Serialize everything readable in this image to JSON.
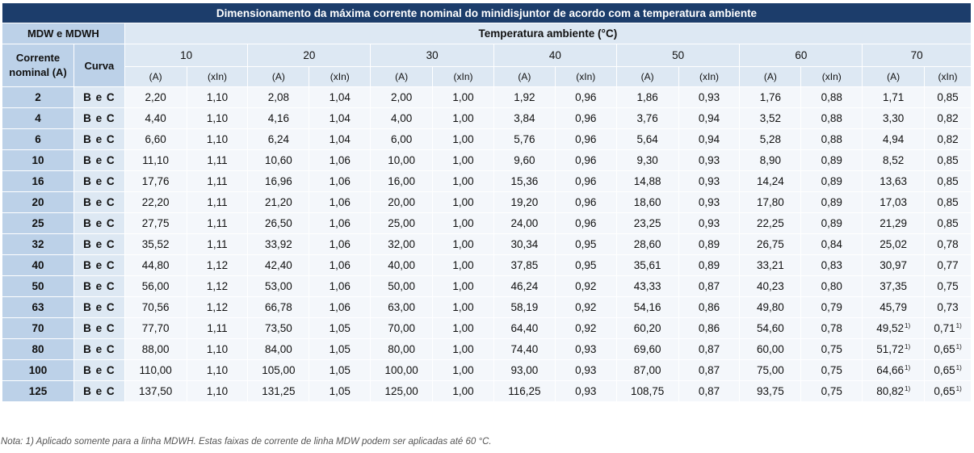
{
  "title": "Dimensionamento da máxima corrente nominal do minidisjuntor de acordo com a temperatura ambiente",
  "header": {
    "series_label": "MDW e MDWH",
    "temp_label": "Temperatura ambiente (°C)",
    "current_label_line1": "Corrente",
    "current_label_line2": "nominal (A)",
    "curve_label": "Curva",
    "temperatures": [
      "10",
      "20",
      "30",
      "40",
      "50",
      "60",
      "70"
    ],
    "unit_a": "(A)",
    "unit_xin": "(xIn)"
  },
  "rows": [
    {
      "current": "2",
      "curve": "B e C",
      "values": [
        "2,20",
        "1,10",
        "2,08",
        "1,04",
        "2,00",
        "1,00",
        "1,92",
        "0,96",
        "1,86",
        "0,93",
        "1,76",
        "0,88",
        "1,71",
        "0,85"
      ]
    },
    {
      "current": "4",
      "curve": "B e C",
      "values": [
        "4,40",
        "1,10",
        "4,16",
        "1,04",
        "4,00",
        "1,00",
        "3,84",
        "0,96",
        "3,76",
        "0,94",
        "3,52",
        "0,88",
        "3,30",
        "0,82"
      ]
    },
    {
      "current": "6",
      "curve": "B e C",
      "values": [
        "6,60",
        "1,10",
        "6,24",
        "1,04",
        "6,00",
        "1,00",
        "5,76",
        "0,96",
        "5,64",
        "0,94",
        "5,28",
        "0,88",
        "4,94",
        "0,82"
      ]
    },
    {
      "current": "10",
      "curve": "B e C",
      "values": [
        "11,10",
        "1,11",
        "10,60",
        "1,06",
        "10,00",
        "1,00",
        "9,60",
        "0,96",
        "9,30",
        "0,93",
        "8,90",
        "0,89",
        "8,52",
        "0,85"
      ]
    },
    {
      "current": "16",
      "curve": "B e C",
      "values": [
        "17,76",
        "1,11",
        "16,96",
        "1,06",
        "16,00",
        "1,00",
        "15,36",
        "0,96",
        "14,88",
        "0,93",
        "14,24",
        "0,89",
        "13,63",
        "0,85"
      ]
    },
    {
      "current": "20",
      "curve": "B e C",
      "values": [
        "22,20",
        "1,11",
        "21,20",
        "1,06",
        "20,00",
        "1,00",
        "19,20",
        "0,96",
        "18,60",
        "0,93",
        "17,80",
        "0,89",
        "17,03",
        "0,85"
      ]
    },
    {
      "current": "25",
      "curve": "B e C",
      "values": [
        "27,75",
        "1,11",
        "26,50",
        "1,06",
        "25,00",
        "1,00",
        "24,00",
        "0,96",
        "23,25",
        "0,93",
        "22,25",
        "0,89",
        "21,29",
        "0,85"
      ]
    },
    {
      "current": "32",
      "curve": "B e C",
      "values": [
        "35,52",
        "1,11",
        "33,92",
        "1,06",
        "32,00",
        "1,00",
        "30,34",
        "0,95",
        "28,60",
        "0,89",
        "26,75",
        "0,84",
        "25,02",
        "0,78"
      ]
    },
    {
      "current": "40",
      "curve": "B e C",
      "values": [
        "44,80",
        "1,12",
        "42,40",
        "1,06",
        "40,00",
        "1,00",
        "37,85",
        "0,95",
        "35,61",
        "0,89",
        "33,21",
        "0,83",
        "30,97",
        "0,77"
      ]
    },
    {
      "current": "50",
      "curve": "B e C",
      "values": [
        "56,00",
        "1,12",
        "53,00",
        "1,06",
        "50,00",
        "1,00",
        "46,24",
        "0,92",
        "43,33",
        "0,87",
        "40,23",
        "0,80",
        "37,35",
        "0,75"
      ]
    },
    {
      "current": "63",
      "curve": "B e C",
      "values": [
        "70,56",
        "1,12",
        "66,78",
        "1,06",
        "63,00",
        "1,00",
        "58,19",
        "0,92",
        "54,16",
        "0,86",
        "49,80",
        "0,79",
        "45,79",
        "0,73"
      ]
    },
    {
      "current": "70",
      "curve": "B e C",
      "values": [
        "77,70",
        "1,11",
        "73,50",
        "1,05",
        "70,00",
        "1,00",
        "64,40",
        "0,92",
        "60,20",
        "0,86",
        "54,60",
        "0,78",
        "49,52",
        "0,71"
      ],
      "footnote": "1)"
    },
    {
      "current": "80",
      "curve": "B e C",
      "values": [
        "88,00",
        "1,10",
        "84,00",
        "1,05",
        "80,00",
        "1,00",
        "74,40",
        "0,93",
        "69,60",
        "0,87",
        "60,00",
        "0,75",
        "51,72",
        "0,65"
      ],
      "footnote": "1)"
    },
    {
      "current": "100",
      "curve": "B e C",
      "values": [
        "110,00",
        "1,10",
        "105,00",
        "1,05",
        "100,00",
        "1,00",
        "93,00",
        "0,93",
        "87,00",
        "0,87",
        "75,00",
        "0,75",
        "64,66",
        "0,65"
      ],
      "footnote": "1)"
    },
    {
      "current": "125",
      "curve": "B e C",
      "values": [
        "137,50",
        "1,10",
        "131,25",
        "1,05",
        "125,00",
        "1,00",
        "116,25",
        "0,93",
        "108,75",
        "0,87",
        "93,75",
        "0,75",
        "80,82",
        "0,65"
      ],
      "footnote": "1)"
    }
  ],
  "note": "Nota: 1) Aplicado somente para a linha MDWH. Estas faixas de corrente de linha MDW podem ser aplicadas até 60 °C."
}
